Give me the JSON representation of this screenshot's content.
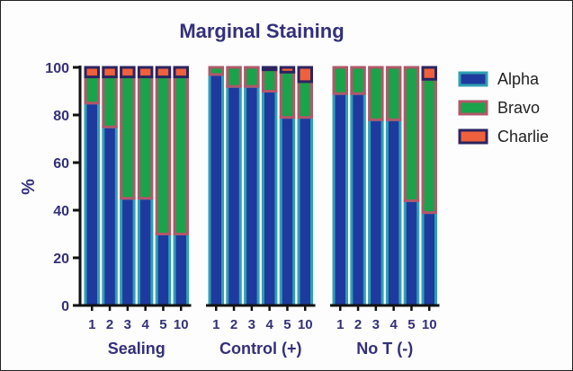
{
  "chart_data": {
    "type": "bar",
    "stacked": true,
    "title": "Marginal Staining",
    "ylabel": "%",
    "xlabel": "",
    "ylim": [
      0,
      100
    ],
    "yticks": [
      0,
      20,
      40,
      60,
      80,
      100
    ],
    "grid": false,
    "legend_position": "right",
    "groups": [
      {
        "label": "Sealing",
        "categories": [
          "1",
          "2",
          "3",
          "4",
          "5",
          "10"
        ],
        "series": [
          {
            "name": "Alpha",
            "values": [
              85,
              75,
              45,
              45,
              30,
              30
            ]
          },
          {
            "name": "Bravo",
            "values": [
              11,
              21,
              51,
              51,
              66,
              66
            ]
          },
          {
            "name": "Charlie",
            "values": [
              4,
              4,
              4,
              4,
              4,
              4
            ]
          }
        ]
      },
      {
        "label": "Control (+)",
        "categories": [
          "1",
          "2",
          "3",
          "4",
          "5",
          "10"
        ],
        "series": [
          {
            "name": "Alpha",
            "values": [
              97,
              92,
              92,
              90,
              79,
              79
            ]
          },
          {
            "name": "Bravo",
            "values": [
              3,
              8,
              8,
              9,
              19,
              15
            ]
          },
          {
            "name": "Charlie",
            "values": [
              0,
              0,
              0,
              1,
              2,
              6
            ]
          }
        ]
      },
      {
        "label": "No T (-)",
        "categories": [
          "1",
          "2",
          "3",
          "4",
          "5",
          "10"
        ],
        "series": [
          {
            "name": "Alpha",
            "values": [
              89,
              89,
              78,
              78,
              44,
              39
            ]
          },
          {
            "name": "Bravo",
            "values": [
              11,
              11,
              22,
              22,
              56,
              56
            ]
          },
          {
            "name": "Charlie",
            "values": [
              0,
              0,
              0,
              0,
              0,
              5
            ]
          }
        ]
      }
    ],
    "colors": {
      "Alpha": {
        "fill": "#1f3a9e",
        "edge": "#2fa0b4"
      },
      "Bravo": {
        "fill": "#1aa34a",
        "edge": "#b0586b"
      },
      "Charlie": {
        "fill": "#f0603c",
        "edge": "#2a2460"
      }
    },
    "text_color": "#33307a"
  }
}
